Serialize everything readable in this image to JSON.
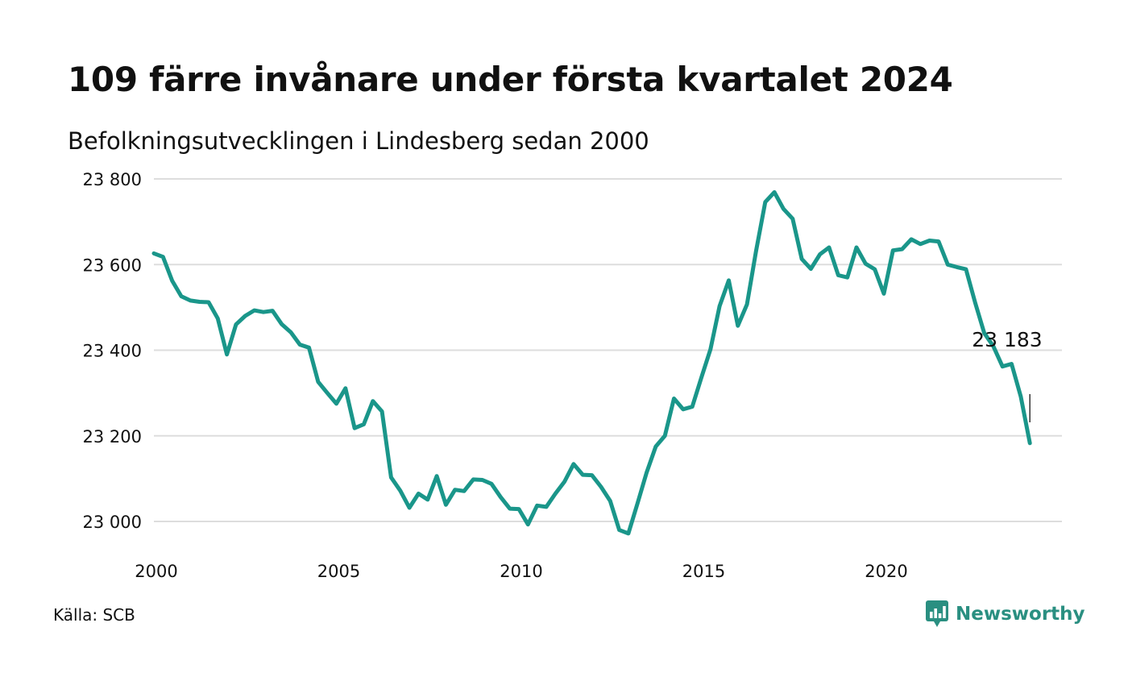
{
  "header": {
    "title": "109 färre invånare under första kvartalet 2024",
    "subtitle": "Befolkningsutvecklingen i Lindesberg sedan 2000"
  },
  "footer": {
    "source": "Källa: SCB",
    "brand": "Newsworthy",
    "brand_icon": "bar-chart-speech-bubble-icon"
  },
  "colors": {
    "line": "#1a968a",
    "grid": "#dddddd",
    "text": "#111111",
    "brand": "#2a8f81"
  },
  "chart_data": {
    "type": "line",
    "title": "109 färre invånare under första kvartalet 2024",
    "subtitle": "Befolkningsutvecklingen i Lindesberg sedan 2000",
    "xlabel": "",
    "ylabel": "",
    "xlim": [
      2000,
      2024
    ],
    "ylim": [
      22950,
      23800
    ],
    "grid": true,
    "legend": "none",
    "x_ticks": [
      2000,
      2005,
      2010,
      2015,
      2020
    ],
    "x_tick_labels": [
      "2000",
      "2005",
      "2010",
      "2015",
      "2020"
    ],
    "y_ticks": [
      23000,
      23200,
      23400,
      23600,
      23800
    ],
    "y_tick_labels": [
      "23 000",
      "23 200",
      "23 400",
      "23 600",
      "23 800"
    ],
    "annotation": {
      "label": "23 183",
      "x": 2024.0,
      "y": 23183
    },
    "series": [
      {
        "x": [
          2000.0,
          2000.25,
          2000.5,
          2000.75,
          2001.0,
          2001.25,
          2001.5,
          2001.75,
          2002.0,
          2002.25,
          2002.5,
          2002.75,
          2003.0,
          2003.25,
          2003.5,
          2003.75,
          2004.0,
          2004.25,
          2004.5,
          2004.75,
          2005.0,
          2005.25,
          2005.5,
          2005.75,
          2006.0,
          2006.25,
          2006.5,
          2006.75,
          2007.0,
          2007.25,
          2007.5,
          2007.75,
          2008.0,
          2008.25,
          2008.5,
          2008.75,
          2009.0,
          2009.25,
          2009.5,
          2009.75,
          2010.0,
          2010.25,
          2010.5,
          2010.75,
          2011.0,
          2011.25,
          2011.5,
          2011.75,
          2012.0,
          2012.25,
          2012.5,
          2012.75,
          2013.0,
          2013.25,
          2013.5,
          2013.75,
          2014.0,
          2014.25,
          2014.5,
          2014.75,
          2015.0,
          2015.25,
          2015.5,
          2015.75,
          2016.0,
          2016.25,
          2016.5,
          2016.75,
          2017.0,
          2017.25,
          2017.5,
          2017.75,
          2018.0,
          2018.25,
          2018.5,
          2018.75,
          2019.0,
          2019.25,
          2019.5,
          2019.75,
          2020.0,
          2020.25,
          2020.5,
          2020.75,
          2021.0,
          2021.25,
          2021.5,
          2021.75,
          2022.0,
          2022.25,
          2022.5,
          2022.75,
          2023.0,
          2023.25,
          2023.5,
          2023.75,
          2024.0
        ],
        "values": [
          23626,
          23618,
          23562,
          23526,
          23516,
          23513,
          23512,
          23474,
          23390,
          23460,
          23480,
          23493,
          23489,
          23492,
          23461,
          23442,
          23413,
          23406,
          23326,
          23300,
          23275,
          23311,
          23218,
          23227,
          23281,
          23257,
          23103,
          23072,
          23032,
          23065,
          23051,
          23106,
          23039,
          23074,
          23071,
          23098,
          23097,
          23088,
          23057,
          23030,
          23029,
          22993,
          23037,
          23034,
          23065,
          23093,
          23134,
          23109,
          23108,
          23081,
          23048,
          22980,
          22972,
          23042,
          23114,
          23175,
          23200,
          23287,
          23262,
          23268,
          23336,
          23402,
          23503,
          23563,
          23457,
          23507,
          23632,
          23746,
          23769,
          23730,
          23707,
          23613,
          23590,
          23624,
          23640,
          23575,
          23570,
          23640,
          23602,
          23589,
          23532,
          23633,
          23636,
          23659,
          23648,
          23656,
          23654,
          23600,
          23594,
          23589,
          23511,
          23440,
          23409,
          23362,
          23368,
          23292,
          23183
        ]
      }
    ]
  }
}
